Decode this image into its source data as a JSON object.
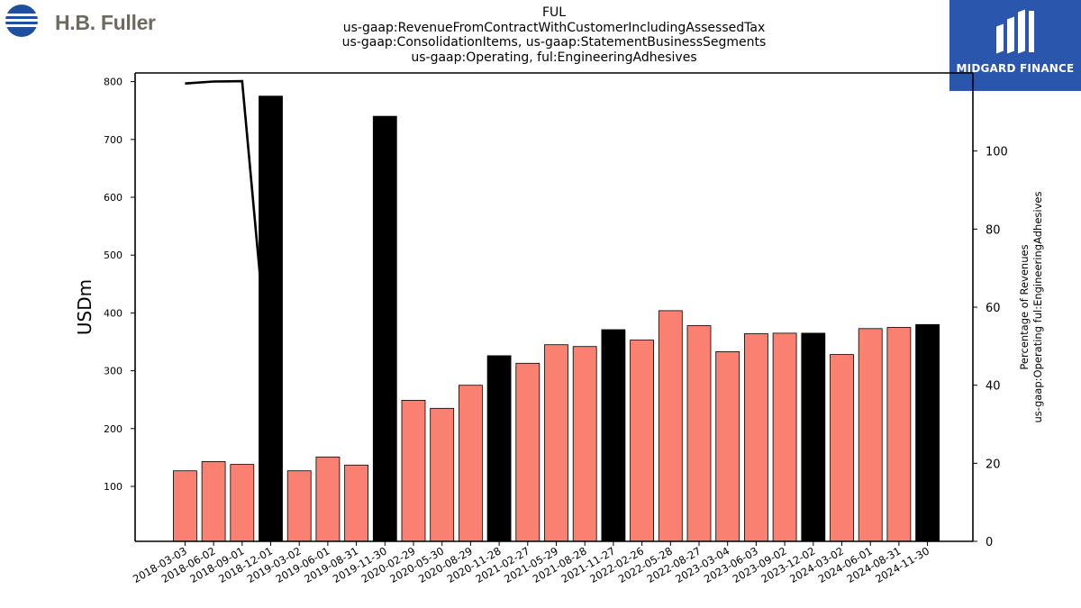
{
  "header": {
    "company_logo_text": "H.B. Fuller",
    "brand_logo_text": "MIDGARD FINANCE"
  },
  "chart_data": {
    "type": "bar",
    "title_lines": [
      "FUL",
      "us-gaap:RevenueFromContractWithCustomerIncludingAssessedTax",
      "us-gaap:ConsolidationItems, us-gaap:StatementBusinessSegments",
      "us-gaap:Operating, ful:EngineeringAdhesives"
    ],
    "ylabel": "USDm",
    "y2label_lines": [
      "Percentage of Revenues",
      "us-gaap:Operating ful:EngineeringAdhesives"
    ],
    "ylim": [
      5,
      815
    ],
    "y2lim": [
      0,
      120
    ],
    "yticks": [
      100,
      200,
      300,
      400,
      500,
      600,
      700,
      800
    ],
    "y2ticks": [
      0,
      20,
      40,
      60,
      80,
      100
    ],
    "grid": false,
    "colors": {
      "quarter": "#fa8072",
      "annual": "#000000",
      "line": "#000000"
    },
    "categories": [
      "2018-03-03",
      "2018-06-02",
      "2018-09-01",
      "2018-12-01",
      "2019-03-02",
      "2019-06-01",
      "2019-08-31",
      "2019-11-30",
      "2020-02-29",
      "2020-05-30",
      "2020-08-29",
      "2020-11-28",
      "2021-02-27",
      "2021-05-29",
      "2021-08-28",
      "2021-11-27",
      "2022-02-26",
      "2022-05-28",
      "2022-08-27",
      "2023-03-04",
      "2023-06-03",
      "2023-09-02",
      "2023-12-02",
      "2024-03-02",
      "2024-06-01",
      "2024-08-31",
      "2024-11-30"
    ],
    "values": [
      127,
      143,
      138,
      775,
      127,
      151,
      137,
      740,
      249,
      235,
      275,
      326,
      313,
      345,
      342,
      371,
      353,
      404,
      378,
      333,
      364,
      365,
      365,
      328,
      373,
      375,
      380
    ],
    "annual_flags": [
      false,
      false,
      false,
      true,
      false,
      false,
      false,
      true,
      false,
      false,
      false,
      true,
      false,
      false,
      false,
      true,
      false,
      false,
      false,
      false,
      false,
      false,
      true,
      false,
      false,
      false,
      true
    ],
    "line_series": {
      "name": "Percentage of Revenues",
      "x_categories": [
        "2018-03-03",
        "2018-06-02",
        "2018-09-01",
        "2018-12-01"
      ],
      "values": [
        117.3,
        117.8,
        117.9,
        38.0
      ]
    }
  }
}
